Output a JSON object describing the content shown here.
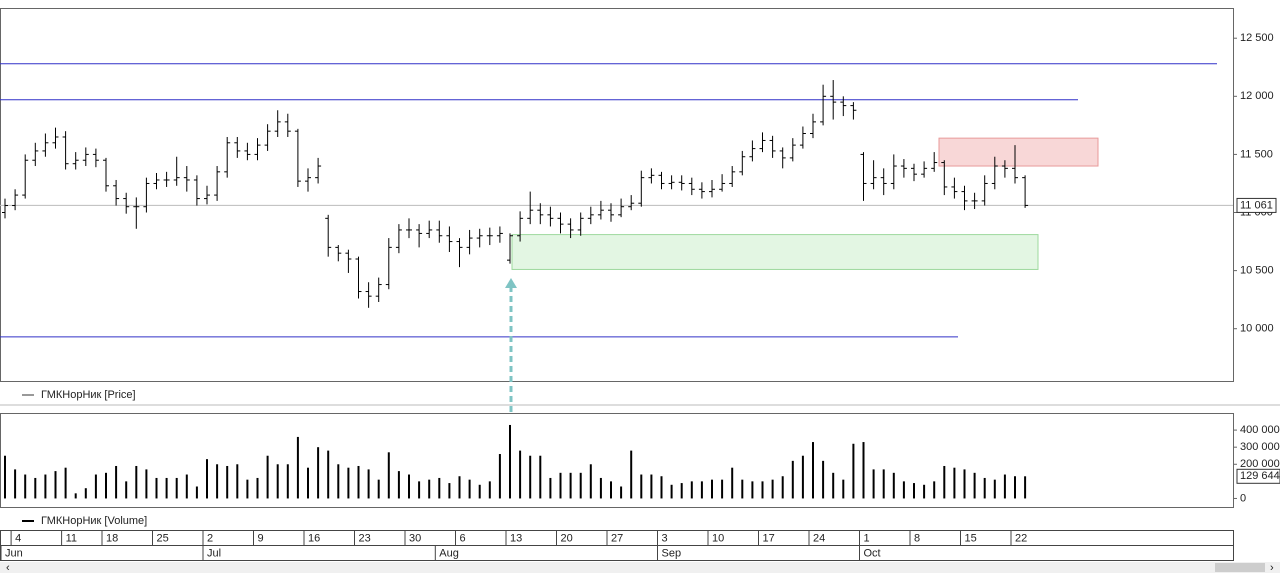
{
  "chart_data": [
    {
      "type": "ohlc",
      "legend": "ГМКНорНик [Price]",
      "color": "#000000",
      "categories": [
        null,
        "4",
        null,
        null,
        null,
        null,
        "11",
        null,
        null,
        null,
        "18",
        null,
        null,
        null,
        null,
        "25",
        null,
        null,
        null,
        null,
        "2",
        null,
        null,
        null,
        null,
        "9",
        null,
        null,
        null,
        null,
        "16",
        null,
        null,
        null,
        null,
        "23",
        null,
        null,
        null,
        null,
        "30",
        null,
        null,
        null,
        null,
        "6",
        null,
        null,
        null,
        null,
        "13",
        null,
        null,
        null,
        null,
        "20",
        null,
        null,
        null,
        null,
        "27",
        null,
        null,
        null,
        null,
        "3",
        null,
        null,
        null,
        null,
        "10",
        null,
        null,
        null,
        null,
        "17",
        null,
        null,
        null,
        null,
        "24",
        null,
        null,
        null,
        null,
        "1",
        null,
        null,
        null,
        null,
        "8",
        null,
        null,
        null,
        null,
        "15",
        null,
        null,
        null,
        null,
        "22",
        null
      ],
      "month_categories": [
        "Jun",
        null,
        null,
        null,
        null,
        null,
        null,
        null,
        null,
        null,
        null,
        null,
        null,
        null,
        null,
        null,
        null,
        null,
        null,
        null,
        "Jul",
        null,
        null,
        null,
        null,
        null,
        null,
        null,
        null,
        null,
        null,
        null,
        null,
        null,
        null,
        null,
        null,
        null,
        null,
        null,
        null,
        null,
        null,
        "Aug",
        null,
        null,
        null,
        null,
        null,
        null,
        null,
        null,
        null,
        null,
        null,
        null,
        null,
        null,
        null,
        null,
        null,
        null,
        null,
        null,
        null,
        "Sep",
        null,
        null,
        null,
        null,
        null,
        null,
        null,
        null,
        null,
        null,
        null,
        null,
        null,
        null,
        null,
        null,
        null,
        null,
        null,
        "Oct",
        null,
        null,
        null,
        null,
        null,
        null,
        null,
        null,
        null,
        null,
        null,
        null,
        null,
        null,
        null,
        null
      ],
      "open": [
        11000,
        11060,
        11150,
        11450,
        11530,
        11600,
        11650,
        11420,
        11450,
        11500,
        11450,
        11230,
        11120,
        11050,
        11050,
        11250,
        11280,
        11280,
        11300,
        11280,
        11120,
        11150,
        11350,
        11600,
        11530,
        11500,
        11580,
        11700,
        11780,
        11700,
        11270,
        11300,
        10950,
        10700,
        10650,
        10600,
        10320,
        10280,
        10380,
        10700,
        10850,
        10850,
        10820,
        10850,
        10800,
        10750,
        10700,
        10780,
        10800,
        10800,
        10590,
        10800,
        10950,
        11020,
        10980,
        10950,
        10900,
        10850,
        10950,
        10980,
        11020,
        10980,
        11050,
        11080,
        11300,
        11320,
        11250,
        11260,
        11250,
        11200,
        11180,
        11200,
        11250,
        11350,
        11480,
        11550,
        11620,
        11530,
        11470,
        11580,
        11680,
        11780,
        12000,
        11950,
        11920,
        11500,
        11250,
        11300,
        11250,
        11400,
        11380,
        11330,
        11380,
        11430,
        11220,
        11180,
        11100,
        11100,
        11250,
        11400,
        11380,
        11300
      ],
      "high": [
        11120,
        11200,
        11500,
        11600,
        11680,
        11730,
        11700,
        11520,
        11560,
        11550,
        11470,
        11280,
        11170,
        11130,
        11300,
        11340,
        11350,
        11480,
        11400,
        11320,
        11230,
        11400,
        11650,
        11650,
        11600,
        11640,
        11760,
        11880,
        11850,
        11720,
        11380,
        11470,
        10980,
        10720,
        10680,
        10620,
        10400,
        10440,
        10780,
        10900,
        10950,
        10900,
        10930,
        10930,
        10880,
        10780,
        10850,
        10860,
        10870,
        10880,
        10820,
        11010,
        11180,
        11080,
        11050,
        11000,
        10950,
        11000,
        11050,
        11100,
        11080,
        11120,
        11150,
        11360,
        11380,
        11350,
        11320,
        11320,
        11300,
        11260,
        11280,
        11330,
        11400,
        11530,
        11620,
        11690,
        11660,
        11560,
        11640,
        11740,
        11850,
        12100,
        12140,
        12000,
        11950,
        11520,
        11450,
        11380,
        11500,
        11460,
        11420,
        11440,
        11520,
        11450,
        11300,
        11230,
        11170,
        11320,
        11480,
        11450,
        11580,
        11320
      ],
      "low": [
        10950,
        11020,
        11120,
        11400,
        11480,
        11550,
        11370,
        11370,
        11400,
        11390,
        11180,
        11060,
        10990,
        10860,
        11000,
        11200,
        11220,
        11230,
        11180,
        11060,
        11070,
        11100,
        11300,
        11470,
        11450,
        11450,
        11530,
        11650,
        11650,
        11220,
        11180,
        11250,
        10620,
        10580,
        10480,
        10260,
        10180,
        10230,
        10340,
        10650,
        10780,
        10700,
        10780,
        10740,
        10660,
        10530,
        10640,
        10700,
        10720,
        10740,
        10560,
        10750,
        10900,
        10900,
        10880,
        10820,
        10780,
        10800,
        10900,
        10940,
        10920,
        10960,
        11020,
        11050,
        11250,
        11200,
        11200,
        11190,
        11150,
        11120,
        11130,
        11180,
        11220,
        11320,
        11440,
        11520,
        11470,
        11380,
        11440,
        11550,
        11640,
        11750,
        11800,
        11830,
        11800,
        11100,
        11200,
        11150,
        11200,
        11300,
        11270,
        11300,
        11350,
        11150,
        11120,
        11020,
        11030,
        11060,
        11200,
        11300,
        11250,
        11040
      ],
      "close": [
        11060,
        11150,
        11450,
        11530,
        11600,
        11650,
        11420,
        11450,
        11500,
        11450,
        11230,
        11120,
        11050,
        11050,
        11250,
        11280,
        11280,
        11300,
        11280,
        11120,
        11150,
        11350,
        11600,
        11530,
        11500,
        11580,
        11700,
        11780,
        11700,
        11270,
        11300,
        11400,
        10700,
        10650,
        10600,
        10320,
        10280,
        10380,
        10700,
        10850,
        10850,
        10820,
        10850,
        10800,
        10750,
        10700,
        10780,
        10800,
        10800,
        10820,
        10800,
        10950,
        11020,
        10980,
        10950,
        10900,
        10850,
        10950,
        10980,
        11020,
        10980,
        11050,
        11080,
        11300,
        11320,
        11250,
        11260,
        11250,
        11200,
        11180,
        11200,
        11250,
        11350,
        11480,
        11550,
        11620,
        11530,
        11470,
        11580,
        11680,
        11780,
        12000,
        11950,
        11920,
        11880,
        11250,
        11300,
        11250,
        11400,
        11380,
        11330,
        11380,
        11430,
        11220,
        11180,
        11100,
        11100,
        11250,
        11400,
        11380,
        11300,
        11061
      ],
      "last_value_label": "11 061",
      "levels": [
        12280,
        11970,
        9930
      ],
      "zones": [
        {
          "low": 11400,
          "high": 11640,
          "color": "#f8d7d7"
        },
        {
          "low": 10510,
          "high": 10810,
          "color": "#e3f6e3"
        }
      ],
      "ylim": [
        9550,
        12760
      ],
      "yticks": [
        {
          "value": 10000,
          "label": "10 000"
        },
        {
          "value": 10500,
          "label": "10 500"
        },
        {
          "value": 11000,
          "label": "11 000"
        },
        {
          "value": 11500,
          "label": "11 500"
        },
        {
          "value": 12000,
          "label": "12 000"
        },
        {
          "value": 12500,
          "label": "12 500"
        }
      ]
    },
    {
      "type": "bar",
      "legend": "ГМКНорНик [Volume]",
      "color": "#000000",
      "values": [
        250000,
        170000,
        140000,
        120000,
        140000,
        160000,
        180000,
        30000,
        60000,
        140000,
        150000,
        190000,
        100000,
        190000,
        170000,
        120000,
        120000,
        120000,
        140000,
        70000,
        230000,
        200000,
        190000,
        200000,
        110000,
        120000,
        250000,
        200000,
        200000,
        360000,
        180000,
        300000,
        280000,
        200000,
        180000,
        190000,
        170000,
        110000,
        270000,
        160000,
        140000,
        100000,
        110000,
        120000,
        90000,
        130000,
        110000,
        80000,
        100000,
        260000,
        430000,
        280000,
        250000,
        250000,
        120000,
        150000,
        150000,
        150000,
        200000,
        120000,
        100000,
        70000,
        280000,
        140000,
        140000,
        130000,
        80000,
        90000,
        100000,
        100000,
        110000,
        110000,
        180000,
        110000,
        100000,
        100000,
        110000,
        130000,
        220000,
        250000,
        330000,
        220000,
        150000,
        110000,
        320000,
        330000,
        170000,
        170000,
        150000,
        100000,
        90000,
        80000,
        100000,
        190000,
        180000,
        170000,
        150000,
        120000,
        110000,
        140000,
        130000,
        129644
      ],
      "last_value_label": "129 644",
      "ylim": [
        -50000,
        500000
      ],
      "yticks": [
        0,
        {
          "value": 200000,
          "label": "200 000"
        },
        {
          "value": 300000,
          "label": "300 000"
        },
        {
          "value": 400000,
          "label": "400 000"
        }
      ]
    }
  ]
}
